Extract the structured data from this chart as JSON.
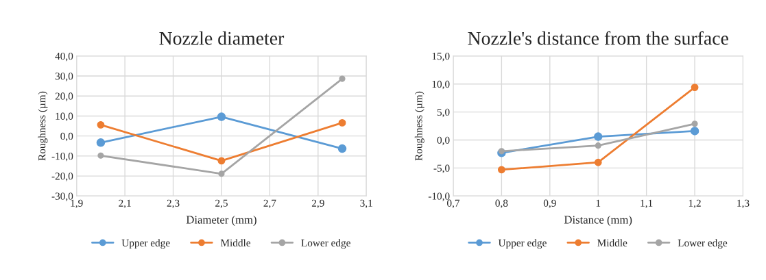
{
  "chart_data": [
    {
      "type": "line",
      "title": "Nozzle diameter",
      "xlabel": "Diameter (mm)",
      "ylabel": "Roughness (µm)",
      "x": [
        2.0,
        2.5,
        3.0
      ],
      "series": [
        {
          "name": "Upper edge",
          "color": "#5b9bd5",
          "values": [
            -3.3,
            9.6,
            -6.3
          ]
        },
        {
          "name": "Middle",
          "color": "#ed7d31",
          "values": [
            5.6,
            -12.4,
            6.6
          ]
        },
        {
          "name": "Lower edge",
          "color": "#a5a5a5",
          "values": [
            -9.8,
            -18.9,
            28.6
          ]
        }
      ],
      "xlim": [
        1.9,
        3.1
      ],
      "ylim": [
        -30,
        40
      ],
      "xticks": [
        {
          "value": 1.9,
          "label": "1,9"
        },
        {
          "value": 2.1,
          "label": "2,1"
        },
        {
          "value": 2.3,
          "label": "2,3"
        },
        {
          "value": 2.5,
          "label": "2,5"
        },
        {
          "value": 2.7,
          "label": "2,7"
        },
        {
          "value": 2.9,
          "label": "2,9"
        },
        {
          "value": 3.1,
          "label": "3,1"
        }
      ],
      "yticks": [
        {
          "value": -30,
          "label": "-30,0"
        },
        {
          "value": -20,
          "label": "-20,0"
        },
        {
          "value": -10,
          "label": "-10,0"
        },
        {
          "value": 0,
          "label": "0,0"
        },
        {
          "value": 10,
          "label": "10,0"
        },
        {
          "value": 20,
          "label": "20,0"
        },
        {
          "value": 30,
          "label": "30,0"
        },
        {
          "value": 40,
          "label": "40,0"
        }
      ],
      "grid": true,
      "legend": "bottom",
      "marker": "circle",
      "line_style": "solid"
    },
    {
      "type": "line",
      "title": "Nozzle's distance from the surface",
      "xlabel": "Distance (mm)",
      "ylabel": "Roughness (µm)",
      "x": [
        0.8,
        1.0,
        1.2
      ],
      "series": [
        {
          "name": "Upper edge",
          "color": "#5b9bd5",
          "values": [
            -2.3,
            0.6,
            1.6
          ]
        },
        {
          "name": "Middle",
          "color": "#ed7d31",
          "values": [
            -5.3,
            -4.0,
            9.4
          ]
        },
        {
          "name": "Lower edge",
          "color": "#a5a5a5",
          "values": [
            -2.0,
            -1.0,
            2.9
          ]
        }
      ],
      "xlim": [
        0.7,
        1.3
      ],
      "ylim": [
        -10,
        15
      ],
      "xticks": [
        {
          "value": 0.7,
          "label": "0,7"
        },
        {
          "value": 0.8,
          "label": "0,8"
        },
        {
          "value": 0.9,
          "label": "0,9"
        },
        {
          "value": 1.0,
          "label": "1"
        },
        {
          "value": 1.1,
          "label": "1,1"
        },
        {
          "value": 1.2,
          "label": "1,2"
        },
        {
          "value": 1.3,
          "label": "1,3"
        }
      ],
      "yticks": [
        {
          "value": -10,
          "label": "-10,0"
        },
        {
          "value": -5,
          "label": "-5,0"
        },
        {
          "value": 0,
          "label": "0,0"
        },
        {
          "value": 5,
          "label": "5,0"
        },
        {
          "value": 10,
          "label": "10,0"
        },
        {
          "value": 15,
          "label": "15,0"
        }
      ],
      "grid": true,
      "legend": "bottom",
      "marker": "circle",
      "line_style": "solid"
    }
  ]
}
